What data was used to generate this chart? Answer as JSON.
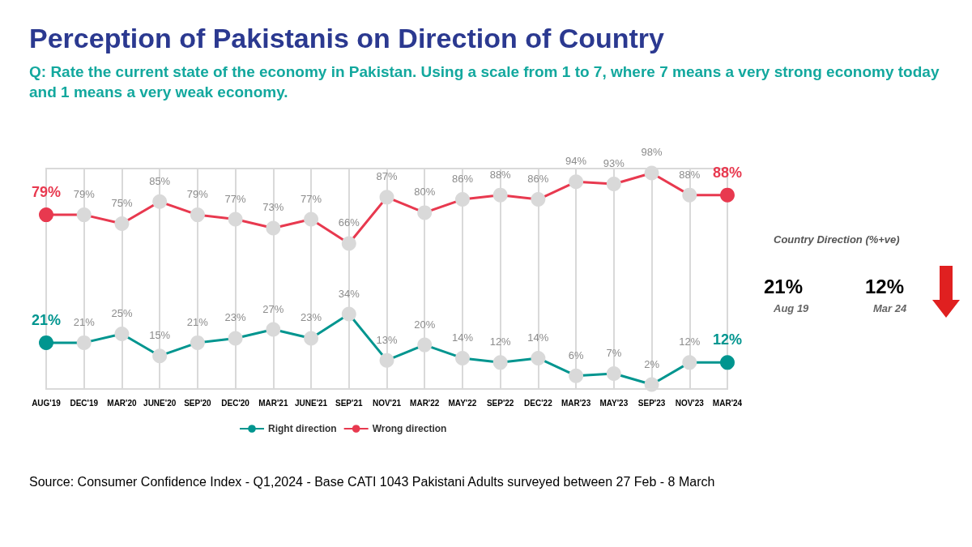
{
  "chart_data": {
    "type": "line",
    "title": "Perception of Pakistanis on Direction of Country",
    "subtitle": "Q: Rate the current state of the economy in Pakistan. Using a scale from 1 to 7, where 7 means a very strong economy today and 1 means a very weak economy.",
    "categories": [
      "AUG'19",
      "DEC'19",
      "MAR'20",
      "JUNE'20",
      "SEP'20",
      "DEC'20",
      "MAR'21",
      "JUNE'21",
      "SEP'21",
      "NOV'21",
      "MAR'22",
      "MAY'22",
      "SEP'22",
      "DEC'22",
      "MAR'23",
      "MAY'23",
      "SEP'23",
      "NOV'23",
      "MAR'24"
    ],
    "series": [
      {
        "name": "Right direction",
        "color": "#00958f",
        "colors": [
          "#00958f",
          "#d9d9d9",
          "#d9d9d9",
          "#d9d9d9",
          "#d9d9d9",
          "#d9d9d9",
          "#d9d9d9",
          "#d9d9d9",
          "#d9d9d9",
          "#d9d9d9",
          "#d9d9d9",
          "#d9d9d9",
          "#d9d9d9",
          "#d9d9d9",
          "#d9d9d9",
          "#d9d9d9",
          "#d9d9d9",
          "#d9d9d9",
          "#00958f"
        ],
        "values": [
          21,
          21,
          25,
          15,
          21,
          23,
          27,
          23,
          34,
          13,
          20,
          14,
          12,
          14,
          6,
          7,
          2,
          12,
          12
        ],
        "value_labels": [
          "21%",
          "21%",
          "25%",
          "15%",
          "21%",
          "23%",
          "27%",
          "23%",
          "34%",
          "13%",
          "20%",
          "14%",
          "12%",
          "14%",
          "6%",
          "7%",
          "2%",
          "12%",
          "12%"
        ]
      },
      {
        "name": "Wrong direction",
        "color": "#e8394f",
        "colors": [
          "#e8394f",
          "#d9d9d9",
          "#d9d9d9",
          "#d9d9d9",
          "#d9d9d9",
          "#d9d9d9",
          "#d9d9d9",
          "#d9d9d9",
          "#d9d9d9",
          "#d9d9d9",
          "#d9d9d9",
          "#d9d9d9",
          "#d9d9d9",
          "#d9d9d9",
          "#d9d9d9",
          "#d9d9d9",
          "#d9d9d9",
          "#d9d9d9",
          "#e8394f"
        ],
        "values": [
          79,
          79,
          75,
          85,
          79,
          77,
          73,
          77,
          66,
          87,
          80,
          86,
          88,
          86,
          94,
          93,
          98,
          88,
          88
        ],
        "value_labels": [
          "79%",
          "79%",
          "75%",
          "85%",
          "79%",
          "77%",
          "73%",
          "77%",
          "66%",
          "87%",
          "80%",
          "86%",
          "88%",
          "86%",
          "94%",
          "93%",
          "98%",
          "88%",
          "88%"
        ]
      }
    ],
    "grid": "x",
    "legend": "bottom",
    "marker": "circle",
    "annotations": [
      "Country Direction (%+ve)",
      "21%",
      "Aug 19",
      "12%",
      "Mar 24",
      "Source: Consumer Confidence Index - Q1,2024 - Base CATI 1043 Pakistani Adults surveyed between 27 Feb - 8 March"
    ]
  }
}
